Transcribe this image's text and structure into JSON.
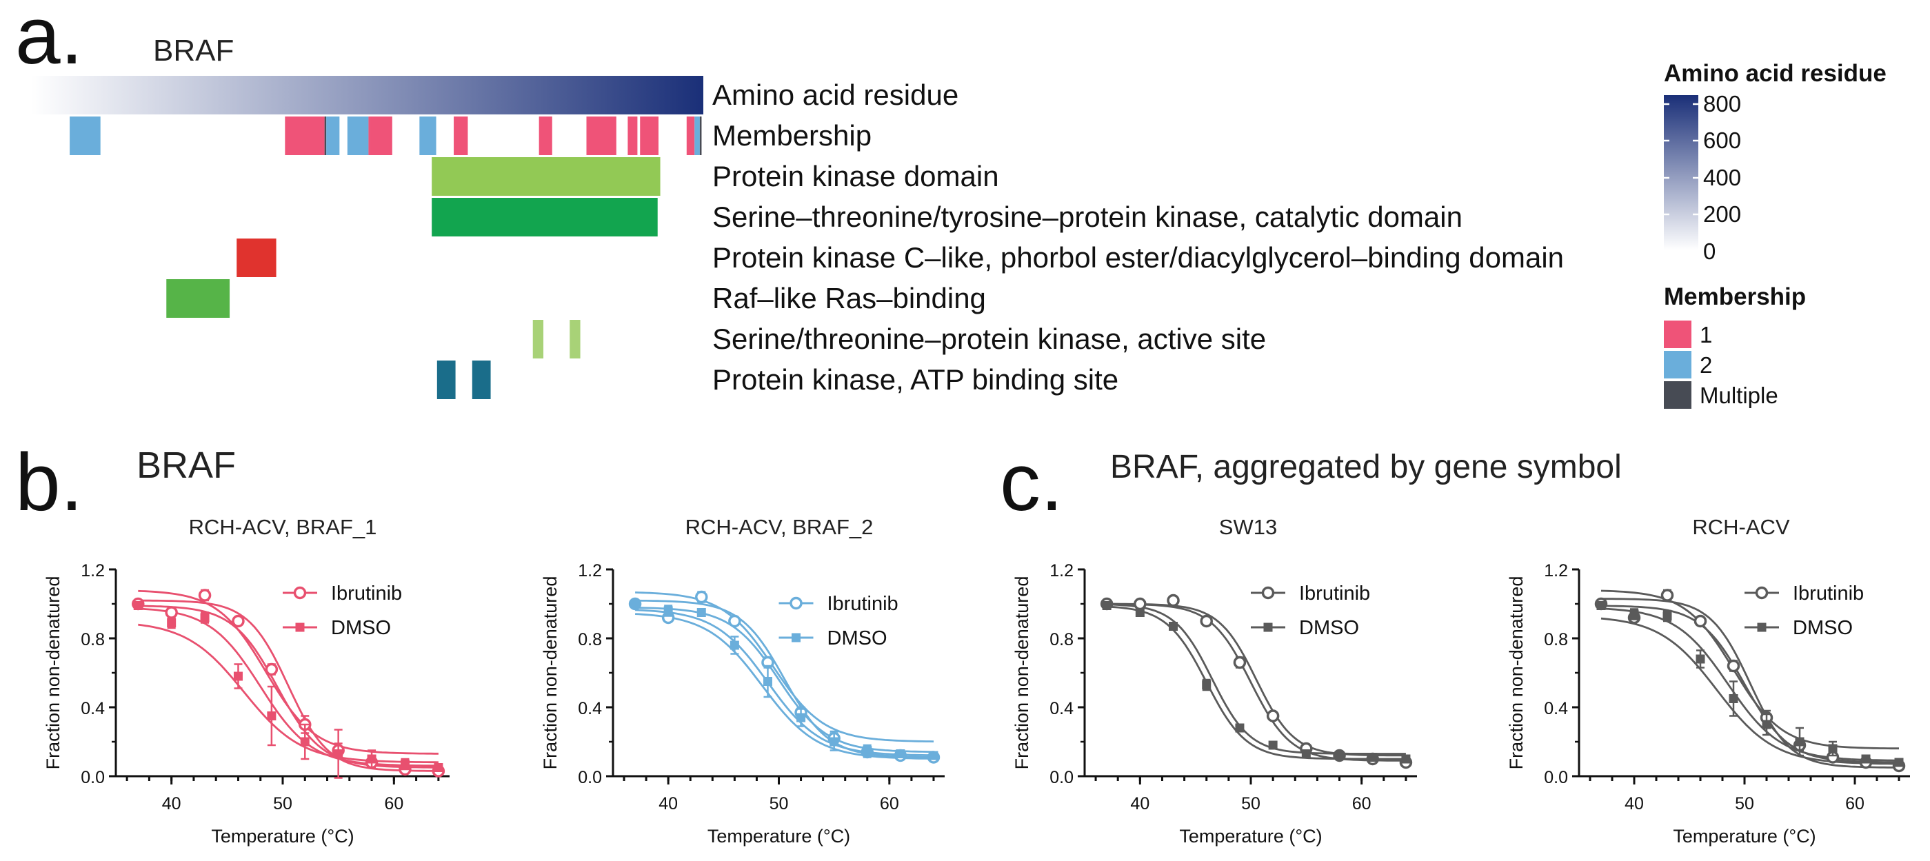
{
  "panel_letters": {
    "a": "a.",
    "b": "b.",
    "c": "c."
  },
  "panel_a": {
    "gene_title": "BRAF",
    "track_labels": [
      "Amino acid residue",
      "Membership",
      "Protein kinase domain",
      "Serine–threonine/tyrosine–protein kinase, catalytic domain",
      "Protein kinase C–like, phorbol ester/diacylglycerol–binding domain",
      "Raf–like Ras–binding",
      "Serine/threonine–protein kinase, active site",
      "Protein kinase, ATP binding site"
    ],
    "residue_legend": {
      "title": "Amino acid residue",
      "ticks": [
        "800",
        "600",
        "400",
        "200",
        "0"
      ],
      "color_low": "#ffffff",
      "color_high": "#1a2f78"
    },
    "membership_legend": {
      "title": "Membership",
      "items": [
        {
          "label": "1",
          "color": "#ef5378"
        },
        {
          "label": "2",
          "color": "#6aaedb"
        },
        {
          "label": "Multiple",
          "color": "#474b54"
        }
      ]
    }
  },
  "panel_b_title": "BRAF",
  "panel_c_title": "BRAF, aggregated by gene symbol",
  "chart_data": [
    {
      "type": "domain-track",
      "protein": "BRAF",
      "residue_range": [
        1,
        766
      ],
      "membership_segments": [
        {
          "start": 45,
          "end": 80,
          "group": "2"
        },
        {
          "start": 290,
          "end": 335,
          "group": "1"
        },
        {
          "start": 335,
          "end": 337,
          "group": "Multiple"
        },
        {
          "start": 337,
          "end": 352,
          "group": "2"
        },
        {
          "start": 361,
          "end": 385,
          "group": "2"
        },
        {
          "start": 385,
          "end": 387,
          "group": "1"
        },
        {
          "start": 387,
          "end": 412,
          "group": "1"
        },
        {
          "start": 443,
          "end": 462,
          "group": "2"
        },
        {
          "start": 482,
          "end": 498,
          "group": "1"
        },
        {
          "start": 579,
          "end": 594,
          "group": "1"
        },
        {
          "start": 633,
          "end": 667,
          "group": "1"
        },
        {
          "start": 680,
          "end": 691,
          "group": "1"
        },
        {
          "start": 694,
          "end": 715,
          "group": "1"
        },
        {
          "start": 747,
          "end": 756,
          "group": "1"
        },
        {
          "start": 756,
          "end": 762,
          "group": "2"
        },
        {
          "start": 762,
          "end": 764,
          "group": "Multiple"
        }
      ],
      "domains": [
        {
          "track": "Protein kinase domain",
          "color": "#92c955",
          "ranges": [
            [
              457,
              717
            ]
          ]
        },
        {
          "track": "Serine–threonine/tyrosine–protein kinase, catalytic domain",
          "color": "#12a54f",
          "ranges": [
            [
              457,
              714
            ]
          ]
        },
        {
          "track": "Protein kinase C–like, phorbol ester/diacylglycerol–binding domain",
          "color": "#e0332e",
          "ranges": [
            [
              235,
              280
            ]
          ]
        },
        {
          "track": "Raf–like Ras–binding",
          "color": "#56b448",
          "ranges": [
            [
              155,
              227
            ]
          ]
        },
        {
          "track": "Serine/threonine–protein kinase, active site",
          "color": "#a8d277",
          "ranges": [
            [
              572,
              584
            ],
            [
              614,
              626
            ]
          ]
        },
        {
          "track": "Protein kinase, ATP binding site",
          "color": "#1a6d8a",
          "ranges": [
            [
              463,
              484
            ],
            [
              503,
              524
            ]
          ]
        }
      ]
    },
    {
      "type": "scatter",
      "panel": "b",
      "title": "RCH-ACV, BRAF_1",
      "xlabel": "Temperature (°C)",
      "ylabel": "Fraction non-denatured",
      "xlim": [
        35,
        65
      ],
      "ylim": [
        0,
        1.2
      ],
      "xticks": [
        "40",
        "50",
        "60"
      ],
      "yticks": [
        "0.0",
        "0.4",
        "0.8",
        "1.2"
      ],
      "color": "#e8506f",
      "legend_position": "top-right",
      "x": [
        37,
        40,
        43,
        46,
        49,
        52,
        55,
        58,
        61,
        64
      ],
      "series": [
        {
          "name": "Ibrutinib",
          "marker": "circle",
          "values": [
            1.0,
            0.95,
            1.05,
            0.9,
            0.62,
            0.3,
            0.15,
            0.08,
            0.04,
            0.03
          ],
          "errors": [
            0.02,
            0.02,
            0.03,
            0.02,
            0.03,
            0.05,
            0.04,
            0.02,
            0.01,
            0.01
          ],
          "fits": [
            {
              "top": 1.02,
              "bottom": 0.03,
              "tm": 50.5,
              "slope": 1.8
            },
            {
              "top": 0.99,
              "bottom": 0.05,
              "tm": 49.5,
              "slope": 2.0
            }
          ]
        },
        {
          "name": "DMSO",
          "marker": "square",
          "values": [
            0.99,
            0.89,
            0.92,
            0.58,
            0.35,
            0.2,
            0.13,
            0.1,
            0.07,
            0.05
          ],
          "errors": [
            0.02,
            0.03,
            0.03,
            0.07,
            0.17,
            0.1,
            0.14,
            0.05,
            0.03,
            0.02
          ],
          "fits": [
            {
              "top": 1.08,
              "bottom": 0.13,
              "tm": 48.5,
              "slope": 2.2
            },
            {
              "top": 0.98,
              "bottom": 0.06,
              "tm": 48.0,
              "slope": 2.3
            },
            {
              "top": 0.9,
              "bottom": 0.08,
              "tm": 46.5,
              "slope": 2.6
            }
          ]
        }
      ]
    },
    {
      "type": "scatter",
      "panel": "b",
      "title": "RCH-ACV, BRAF_2",
      "xlabel": "Temperature (°C)",
      "ylabel": "Fraction non-denatured",
      "xlim": [
        35,
        65
      ],
      "ylim": [
        0,
        1.2
      ],
      "xticks": [
        "40",
        "50",
        "60"
      ],
      "yticks": [
        "0.0",
        "0.4",
        "0.8",
        "1.2"
      ],
      "color": "#6aaedb",
      "legend_position": "top-right",
      "x": [
        37,
        40,
        43,
        46,
        49,
        52,
        55,
        58,
        61,
        64
      ],
      "series": [
        {
          "name": "Ibrutinib",
          "marker": "circle",
          "values": [
            1.0,
            0.92,
            1.04,
            0.9,
            0.66,
            0.37,
            0.22,
            0.14,
            0.12,
            0.11
          ],
          "errors": [
            0.02,
            0.02,
            0.03,
            0.02,
            0.03,
            0.03,
            0.04,
            0.03,
            0.02,
            0.02
          ],
          "fits": [
            {
              "top": 1.02,
              "bottom": 0.11,
              "tm": 50.5,
              "slope": 2.0
            },
            {
              "top": 0.98,
              "bottom": 0.14,
              "tm": 50.0,
              "slope": 2.2
            }
          ]
        },
        {
          "name": "DMSO",
          "marker": "square",
          "values": [
            1.0,
            0.96,
            0.95,
            0.76,
            0.55,
            0.34,
            0.2,
            0.15,
            0.13,
            0.12
          ],
          "errors": [
            0.02,
            0.03,
            0.02,
            0.05,
            0.09,
            0.05,
            0.05,
            0.03,
            0.02,
            0.02
          ],
          "fits": [
            {
              "top": 1.07,
              "bottom": 0.2,
              "tm": 49.5,
              "slope": 2.3
            },
            {
              "top": 0.97,
              "bottom": 0.12,
              "tm": 49.0,
              "slope": 2.4
            },
            {
              "top": 0.95,
              "bottom": 0.1,
              "tm": 48.5,
              "slope": 2.5
            }
          ]
        }
      ]
    },
    {
      "type": "scatter",
      "panel": "c",
      "title": "SW13",
      "xlabel": "Temperature (°C)",
      "ylabel": "Fraction non-denatured",
      "xlim": [
        35,
        65
      ],
      "ylim": [
        0,
        1.2
      ],
      "xticks": [
        "40",
        "50",
        "60"
      ],
      "yticks": [
        "0.0",
        "0.4",
        "0.8",
        "1.2"
      ],
      "color": "#5a5a5a",
      "legend_position": "top-right",
      "x": [
        37,
        40,
        43,
        46,
        49,
        52,
        55,
        58,
        61,
        64
      ],
      "series": [
        {
          "name": "Ibrutinib",
          "marker": "circle",
          "values": [
            1.0,
            1.0,
            1.02,
            0.9,
            0.66,
            0.35,
            0.16,
            0.12,
            0.1,
            0.08
          ],
          "errors": [
            0.01,
            0.01,
            0.02,
            0.02,
            0.03,
            0.02,
            0.02,
            0.01,
            0.01,
            0.01
          ],
          "fits": [
            {
              "top": 1.0,
              "bottom": 0.12,
              "tm": 50.5,
              "slope": 1.7
            },
            {
              "top": 1.0,
              "bottom": 0.09,
              "tm": 50.0,
              "slope": 1.8
            }
          ]
        },
        {
          "name": "DMSO",
          "marker": "square",
          "values": [
            0.99,
            0.95,
            0.87,
            0.53,
            0.28,
            0.18,
            0.13,
            0.12,
            0.11,
            0.1
          ],
          "errors": [
            0.01,
            0.02,
            0.02,
            0.03,
            0.02,
            0.02,
            0.01,
            0.01,
            0.01,
            0.01
          ],
          "fits": [
            {
              "top": 1.0,
              "bottom": 0.13,
              "tm": 46.5,
              "slope": 1.7
            },
            {
              "top": 0.99,
              "bottom": 0.1,
              "tm": 46.0,
              "slope": 1.8
            }
          ]
        }
      ]
    },
    {
      "type": "scatter",
      "panel": "c",
      "title": "RCH-ACV",
      "xlabel": "Temperature (°C)",
      "ylabel": "Fraction non-denatured",
      "xlim": [
        35,
        65
      ],
      "ylim": [
        0,
        1.2
      ],
      "xticks": [
        "40",
        "50",
        "60"
      ],
      "yticks": [
        "0.0",
        "0.4",
        "0.8",
        "1.2"
      ],
      "color": "#5a5a5a",
      "legend_position": "top-right",
      "x": [
        37,
        40,
        43,
        46,
        49,
        52,
        55,
        58,
        61,
        64
      ],
      "series": [
        {
          "name": "Ibrutinib",
          "marker": "circle",
          "values": [
            1.0,
            0.92,
            1.05,
            0.9,
            0.64,
            0.34,
            0.18,
            0.11,
            0.08,
            0.06
          ],
          "errors": [
            0.02,
            0.02,
            0.03,
            0.02,
            0.03,
            0.04,
            0.03,
            0.02,
            0.01,
            0.01
          ],
          "fits": [
            {
              "top": 1.03,
              "bottom": 0.05,
              "tm": 50.5,
              "slope": 1.8
            },
            {
              "top": 0.99,
              "bottom": 0.08,
              "tm": 50.0,
              "slope": 2.0
            }
          ]
        },
        {
          "name": "DMSO",
          "marker": "square",
          "values": [
            0.99,
            0.94,
            0.93,
            0.68,
            0.45,
            0.3,
            0.2,
            0.16,
            0.1,
            0.08
          ],
          "errors": [
            0.02,
            0.03,
            0.03,
            0.05,
            0.1,
            0.06,
            0.08,
            0.04,
            0.02,
            0.02
          ],
          "fits": [
            {
              "top": 1.08,
              "bottom": 0.16,
              "tm": 49.0,
              "slope": 2.2
            },
            {
              "top": 0.98,
              "bottom": 0.09,
              "tm": 48.5,
              "slope": 2.4
            },
            {
              "top": 0.93,
              "bottom": 0.07,
              "tm": 47.5,
              "slope": 2.6
            }
          ]
        }
      ]
    }
  ]
}
